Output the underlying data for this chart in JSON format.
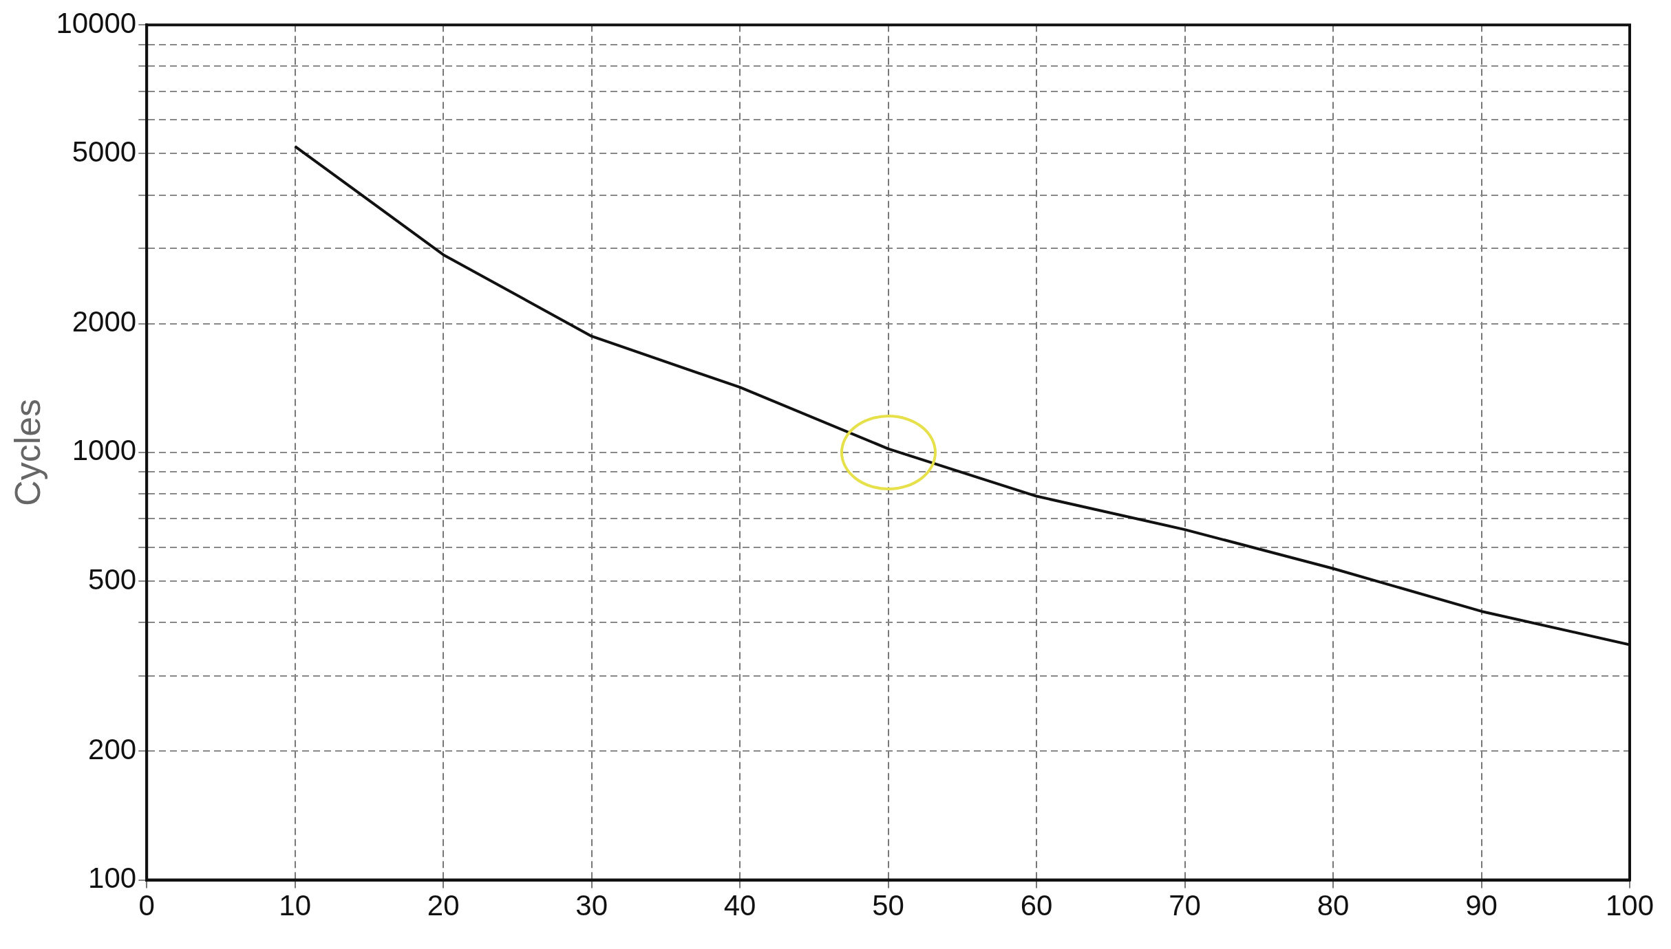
{
  "chart_data": {
    "type": "line",
    "ylabel": "Cycles",
    "log": "y",
    "x": [
      10,
      20,
      30,
      40,
      50,
      60,
      70,
      80,
      90,
      100
    ],
    "series": [
      {
        "color": "#111111",
        "values": [
          5200,
          2900,
          1870,
          1420,
          1020,
          790,
          660,
          535,
          425,
          355
        ]
      }
    ],
    "xlim": [
      0,
      100
    ],
    "xticks": [
      0,
      10,
      20,
      30,
      40,
      50,
      60,
      70,
      80,
      90,
      100
    ],
    "ylim": [
      100,
      10000
    ],
    "yticks": [
      100,
      200,
      {
        "value": 300,
        "label": null
      },
      {
        "value": 400,
        "label": null
      },
      500,
      {
        "value": 600,
        "label": null
      },
      {
        "value": 700,
        "label": null
      },
      {
        "value": 800,
        "label": null
      },
      {
        "value": 900,
        "label": null
      },
      1000,
      2000,
      {
        "value": 3000,
        "label": null
      },
      {
        "value": 4000,
        "label": null
      },
      5000,
      {
        "value": 6000,
        "label": null
      },
      {
        "value": 7000,
        "label": null
      },
      {
        "value": 8000,
        "label": null
      },
      {
        "value": 9000,
        "label": null
      },
      10000
    ],
    "grid": true,
    "marker": "none",
    "line_style": "solid",
    "legend": false
  }
}
